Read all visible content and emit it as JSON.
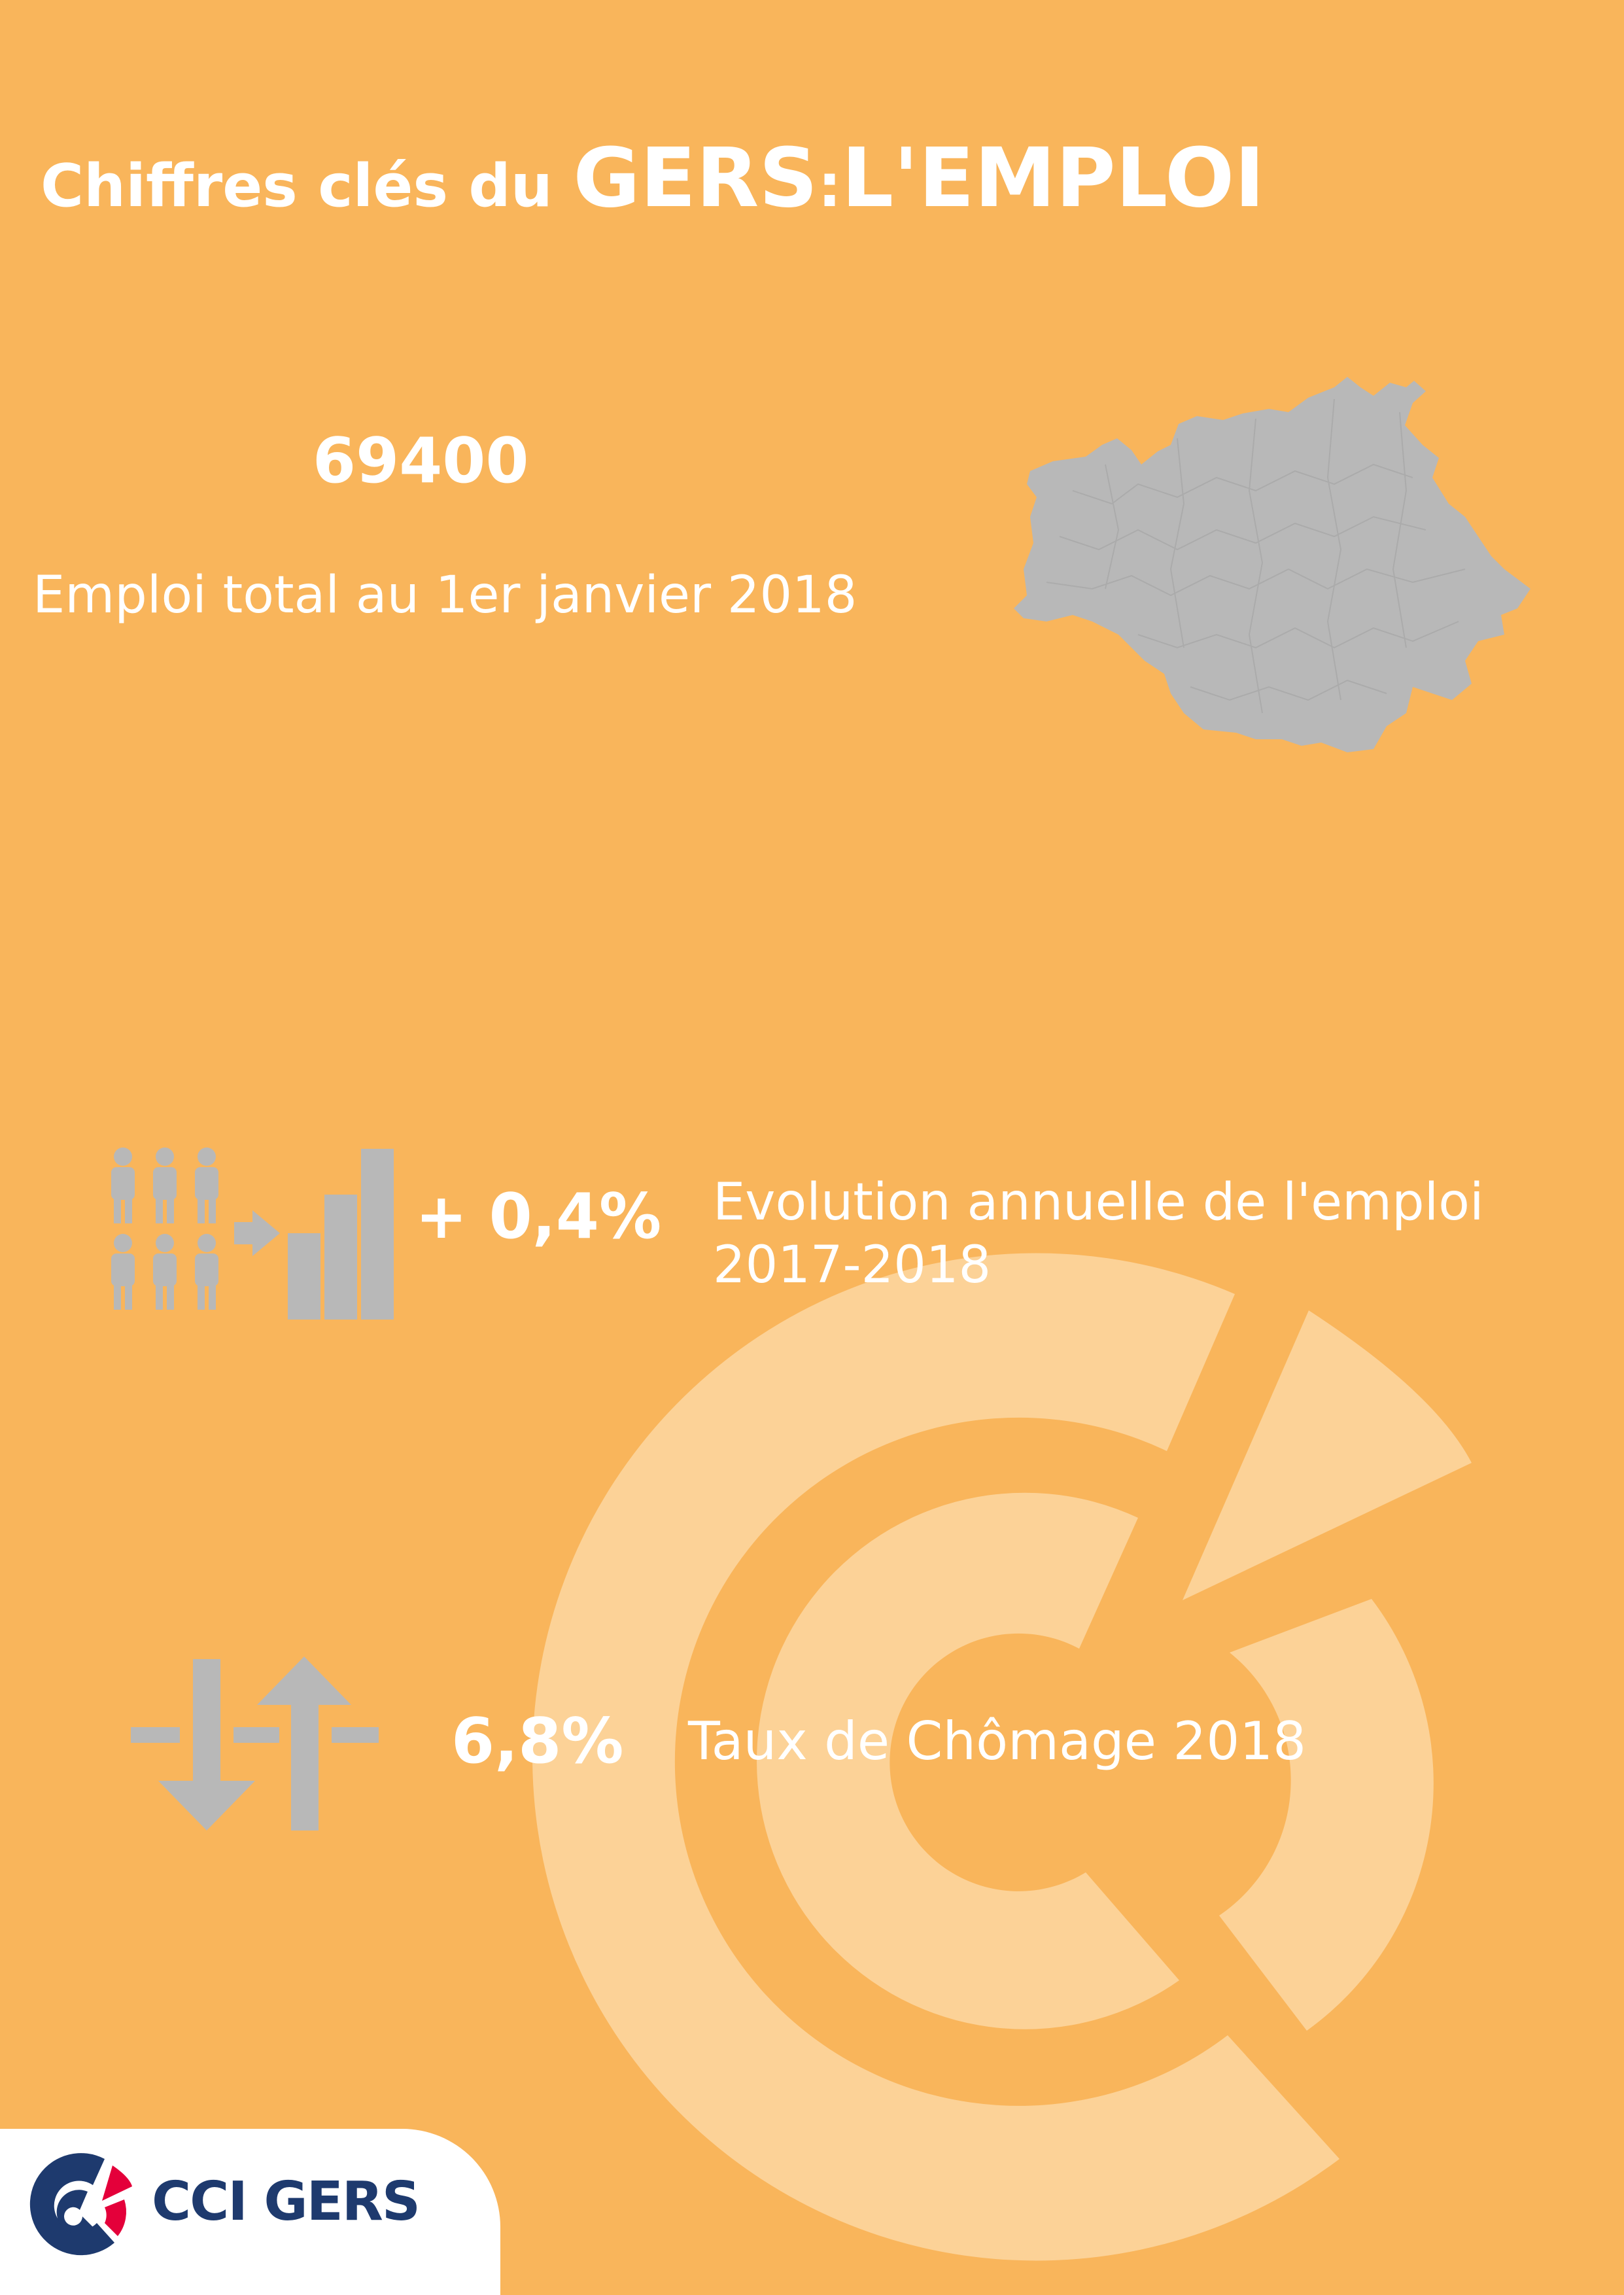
{
  "header": {
    "title_prefix": "Chiffres clés du",
    "title_place": "GERS",
    "title_separator": ":",
    "title_topic": "L'EMPLOI"
  },
  "kpis": [
    {
      "value": "69400",
      "label": "Emploi total au 1er janvier 2018",
      "icon": "gers-map-icon"
    },
    {
      "value": "+ 0,4%",
      "label_line1": "Evolution annuelle de l'emploi",
      "label_line2": "2017-2018",
      "icon": "employment-growth-icon"
    },
    {
      "value": "6,8%",
      "label": "Taux de Chômage 2018",
      "icon": "up-down-arrows-icon"
    }
  ],
  "logo": {
    "text": "CCI GERS",
    "colors": {
      "navy": "#1e3a6e",
      "red": "#e4003a"
    }
  },
  "colors": {
    "background": "#f9b55b",
    "watermark": "#fcd297",
    "icon_gray": "#b8b8b8",
    "text": "#ffffff"
  }
}
